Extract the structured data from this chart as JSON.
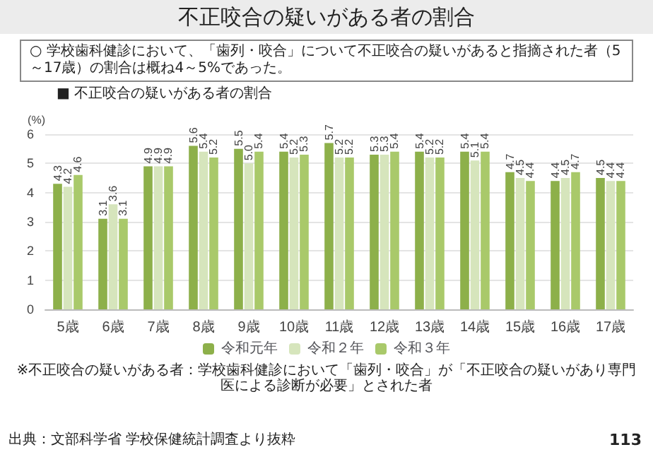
{
  "chart_data": {
    "type": "bar",
    "title": "不正咬合の疑いがある者の割合",
    "subtitle": "○ 学校歯科健診において、「歯列・咬合」について不正咬合の疑いがあると指摘された者（5～17歳）の割合は概ね4～5%であった。",
    "annotations": [
      "■ 不正咬合の疑いがある者の割合",
      "※不正咬合の疑いがある者：学校歯科健診において「歯列・咬合」が「不正咬合の疑いがあり専門医による診断が必要」とされた者",
      "出典：文部科学省 学校保健統計調査より抜粋",
      "113"
    ],
    "ylabel": "(%)",
    "categories": [
      "5歳",
      "6歳",
      "7歳",
      "8歳",
      "9歳",
      "10歳",
      "11歳",
      "12歳",
      "13歳",
      "14歳",
      "15歳",
      "16歳",
      "17歳"
    ],
    "series": [
      {
        "name": "令和元年",
        "color": "#8db04a",
        "values": [
          4.3,
          3.1,
          4.9,
          5.6,
          5.5,
          5.4,
          5.7,
          5.3,
          5.4,
          5.4,
          4.7,
          4.4,
          4.5
        ]
      },
      {
        "name": "令和２年",
        "color": "#d6e5bc",
        "values": [
          4.2,
          3.6,
          4.9,
          5.4,
          5.0,
          5.2,
          5.2,
          5.3,
          5.2,
          5.1,
          4.5,
          4.5,
          4.4
        ],
        "value_labels": [
          "4.2",
          "3.6",
          "4.9",
          "5.4",
          "5.0",
          "5.2",
          "5.2",
          "5.3",
          "5.2",
          "5.1",
          "4.5",
          "4.5",
          "4.4"
        ]
      },
      {
        "name": "令和３年",
        "color": "#a9c96a",
        "values": [
          4.6,
          3.1,
          4.9,
          5.2,
          5.4,
          5.3,
          5.2,
          5.4,
          5.2,
          5.4,
          4.4,
          4.7,
          4.4
        ]
      }
    ],
    "ylim": [
      0,
      6
    ],
    "yticks": [
      0,
      1,
      2,
      3,
      4,
      5,
      6
    ],
    "grid": "y",
    "legend": "bottom",
    "data_labels": true
  }
}
